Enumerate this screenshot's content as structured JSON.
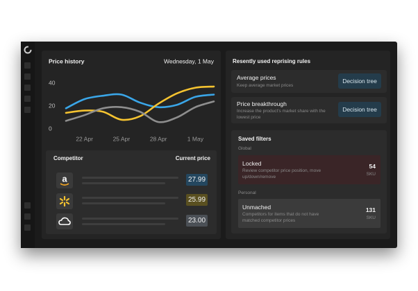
{
  "chart_data": {
    "type": "line",
    "title": "Price history",
    "date": "Wednesday, 1 May",
    "categories": [
      null,
      "22 Apr",
      null,
      "25 Apr",
      null,
      "28 Apr",
      null,
      "1 May",
      null
    ],
    "series": [
      {
        "color": "#3aa6e8",
        "values": [
          18,
          26,
          29,
          30,
          23,
          19,
          21,
          28,
          30
        ]
      },
      {
        "color": "#f5c330",
        "values": [
          14,
          16,
          15,
          8,
          11,
          22,
          31,
          36,
          37
        ]
      },
      {
        "color": "#8e8e8e",
        "values": [
          7,
          12,
          18,
          19,
          15,
          6,
          10,
          19,
          24
        ]
      }
    ],
    "ylim": [
      0,
      40
    ],
    "yticks": [
      0,
      20,
      40
    ],
    "grid": false
  },
  "competitors": {
    "headers": [
      "Competitor",
      "Current price"
    ],
    "rows": [
      {
        "price": "27.99"
      },
      {
        "price": "25.99"
      },
      {
        "price": "23.00"
      }
    ]
  },
  "rules": {
    "title": "Resently used reprising rules",
    "items": [
      {
        "title": "Average prices",
        "description": "Keep average market prices",
        "button": "Decision tree"
      },
      {
        "title": "Price breakthrough",
        "description": "Increase the product's market share with the lowest price",
        "button": "Decision tree"
      }
    ]
  },
  "saved_filters": {
    "title": "Saved filters",
    "groups": [
      {
        "label": "Global",
        "filters": [
          {
            "title": "Locked",
            "description": "Review competitor price position, move up/down/remove",
            "count": 54,
            "unit": "SKU"
          }
        ]
      },
      {
        "label": "Personal",
        "filters": [
          {
            "title": "Unmached",
            "description": "Competitors for items that do not have matched competitor prices",
            "count": 131,
            "unit": "SKU"
          }
        ]
      }
    ]
  }
}
